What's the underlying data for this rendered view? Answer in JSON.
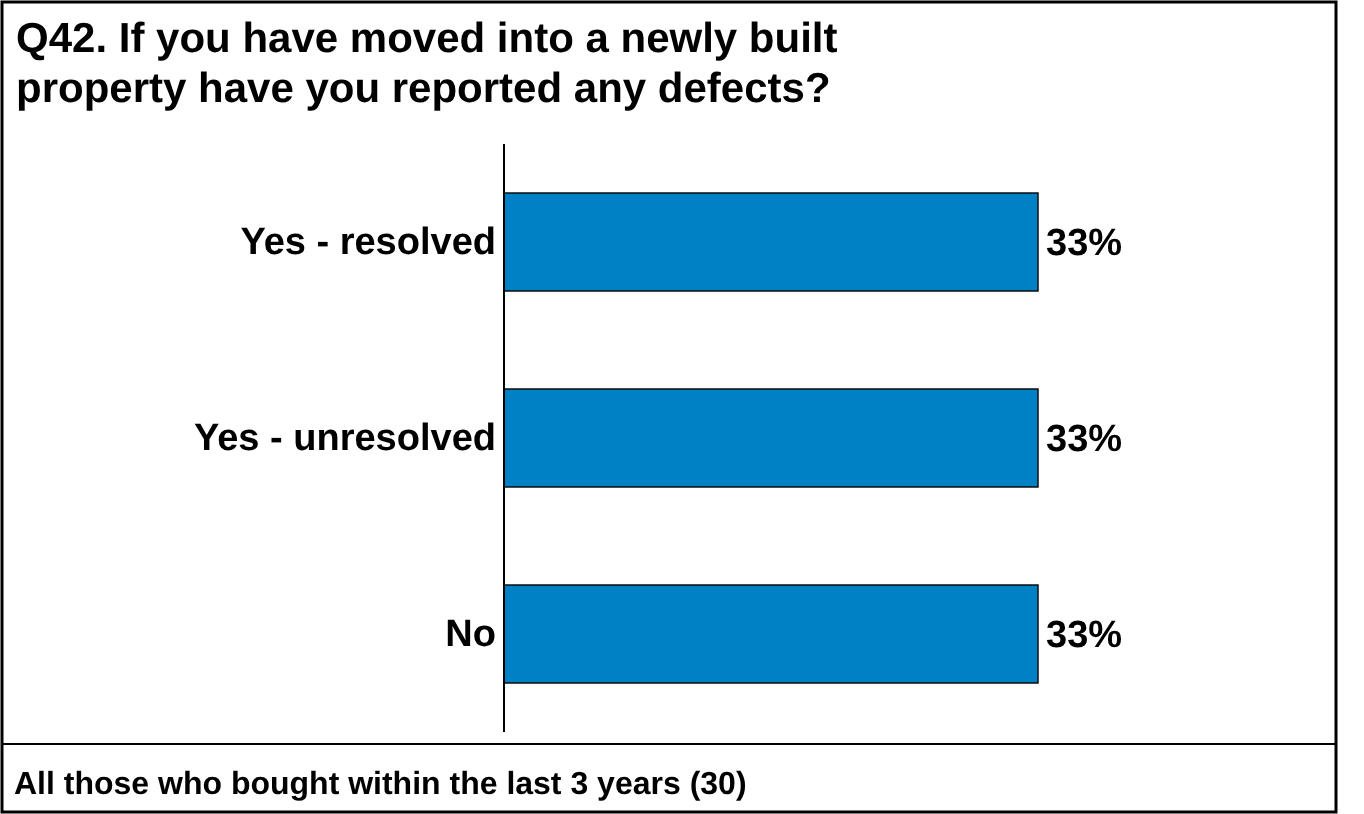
{
  "chart_data": {
    "type": "bar",
    "orientation": "horizontal",
    "title": "Q42. If you have moved into a newly built property have you reported any defects?",
    "categories": [
      "Yes - resolved",
      "Yes - unresolved",
      "No"
    ],
    "values": [
      33,
      33,
      33
    ],
    "value_labels": [
      "33%",
      "33%",
      "33%"
    ],
    "color": "#0081c6",
    "annotations": [
      "All those who bought within the last 3 years (30)"
    ]
  }
}
